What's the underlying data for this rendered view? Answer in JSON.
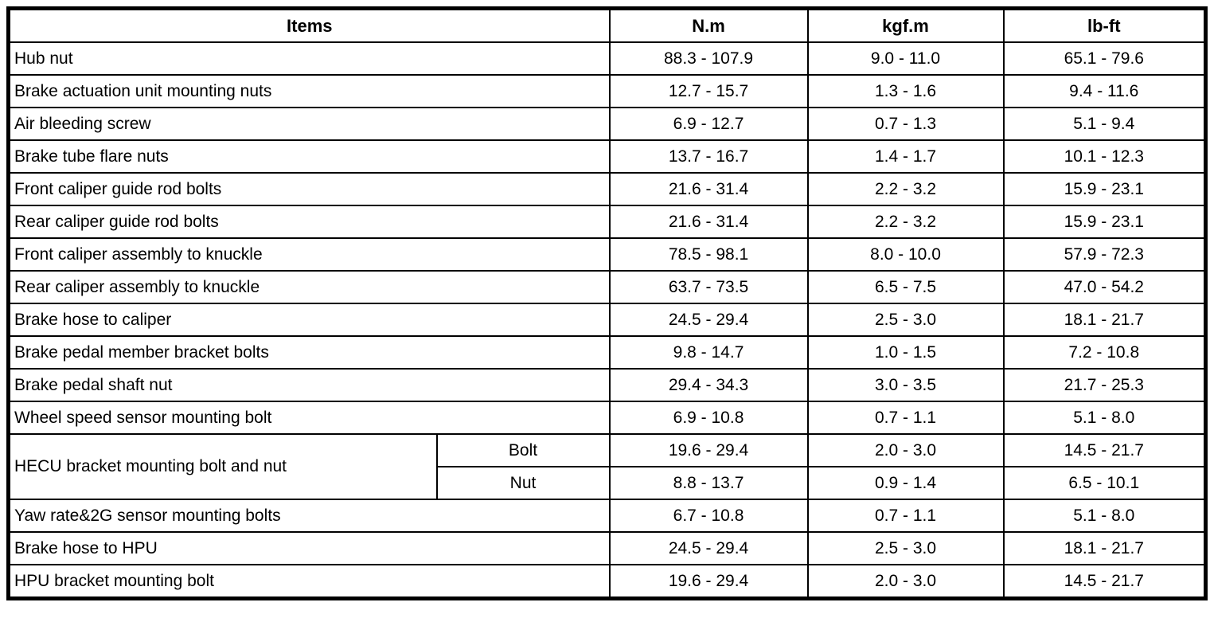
{
  "table": {
    "columns": [
      "Items",
      "N.m",
      "kgf.m",
      "lb-ft"
    ],
    "rows": [
      {
        "item": "Hub nut",
        "values": [
          "88.3 - 107.9",
          "9.0 - 11.0",
          "65.1 - 79.6"
        ]
      },
      {
        "item": "Brake actuation unit mounting nuts",
        "values": [
          "12.7 - 15.7",
          "1.3 - 1.6",
          "9.4 - 11.6"
        ]
      },
      {
        "item": "Air bleeding screw",
        "values": [
          "6.9 - 12.7",
          "0.7 - 1.3",
          "5.1 - 9.4"
        ]
      },
      {
        "item": "Brake tube flare nuts",
        "values": [
          "13.7 - 16.7",
          "1.4 - 1.7",
          "10.1 - 12.3"
        ]
      },
      {
        "item": "Front caliper guide rod bolts",
        "values": [
          "21.6 - 31.4",
          "2.2 - 3.2",
          "15.9 - 23.1"
        ]
      },
      {
        "item": "Rear caliper guide rod bolts",
        "values": [
          "21.6 - 31.4",
          "2.2 - 3.2",
          "15.9 - 23.1"
        ]
      },
      {
        "item": "Front caliper assembly to knuckle",
        "values": [
          "78.5 - 98.1",
          "8.0 - 10.0",
          "57.9 - 72.3"
        ]
      },
      {
        "item": "Rear caliper assembly to knuckle",
        "values": [
          "63.7 - 73.5",
          "6.5 - 7.5",
          "47.0 - 54.2"
        ]
      },
      {
        "item": "Brake hose to caliper",
        "values": [
          "24.5 - 29.4",
          "2.5 - 3.0",
          "18.1 - 21.7"
        ]
      },
      {
        "item": "Brake pedal member bracket bolts",
        "values": [
          "9.8 - 14.7",
          "1.0 - 1.5",
          "7.2 - 10.8"
        ]
      },
      {
        "item": "Brake pedal shaft nut",
        "values": [
          "29.4 - 34.3",
          "3.0 - 3.5",
          "21.7 - 25.3"
        ]
      },
      {
        "item": "Wheel speed sensor mounting bolt",
        "values": [
          "6.9 - 10.8",
          "0.7 - 1.1",
          "5.1 - 8.0"
        ]
      },
      {
        "item": "HECU bracket mounting bolt and nut",
        "sub_rows": [
          {
            "label": "Bolt",
            "values": [
              "19.6 - 29.4",
              "2.0 - 3.0",
              "14.5 - 21.7"
            ]
          },
          {
            "label": "Nut",
            "values": [
              "8.8 - 13.7",
              "0.9 - 1.4",
              "6.5 - 10.1"
            ]
          }
        ]
      },
      {
        "item": "Yaw rate&2G sensor mounting bolts",
        "values": [
          "6.7 - 10.8",
          "0.7 - 1.1",
          "5.1 - 8.0"
        ]
      },
      {
        "item": "Brake hose to HPU",
        "values": [
          "24.5 - 29.4",
          "2.5 - 3.0",
          "18.1 - 21.7"
        ]
      },
      {
        "item": "HPU bracket mounting bolt",
        "values": [
          "19.6 - 29.4",
          "2.0 - 3.0",
          "14.5 - 21.7"
        ]
      }
    ]
  }
}
